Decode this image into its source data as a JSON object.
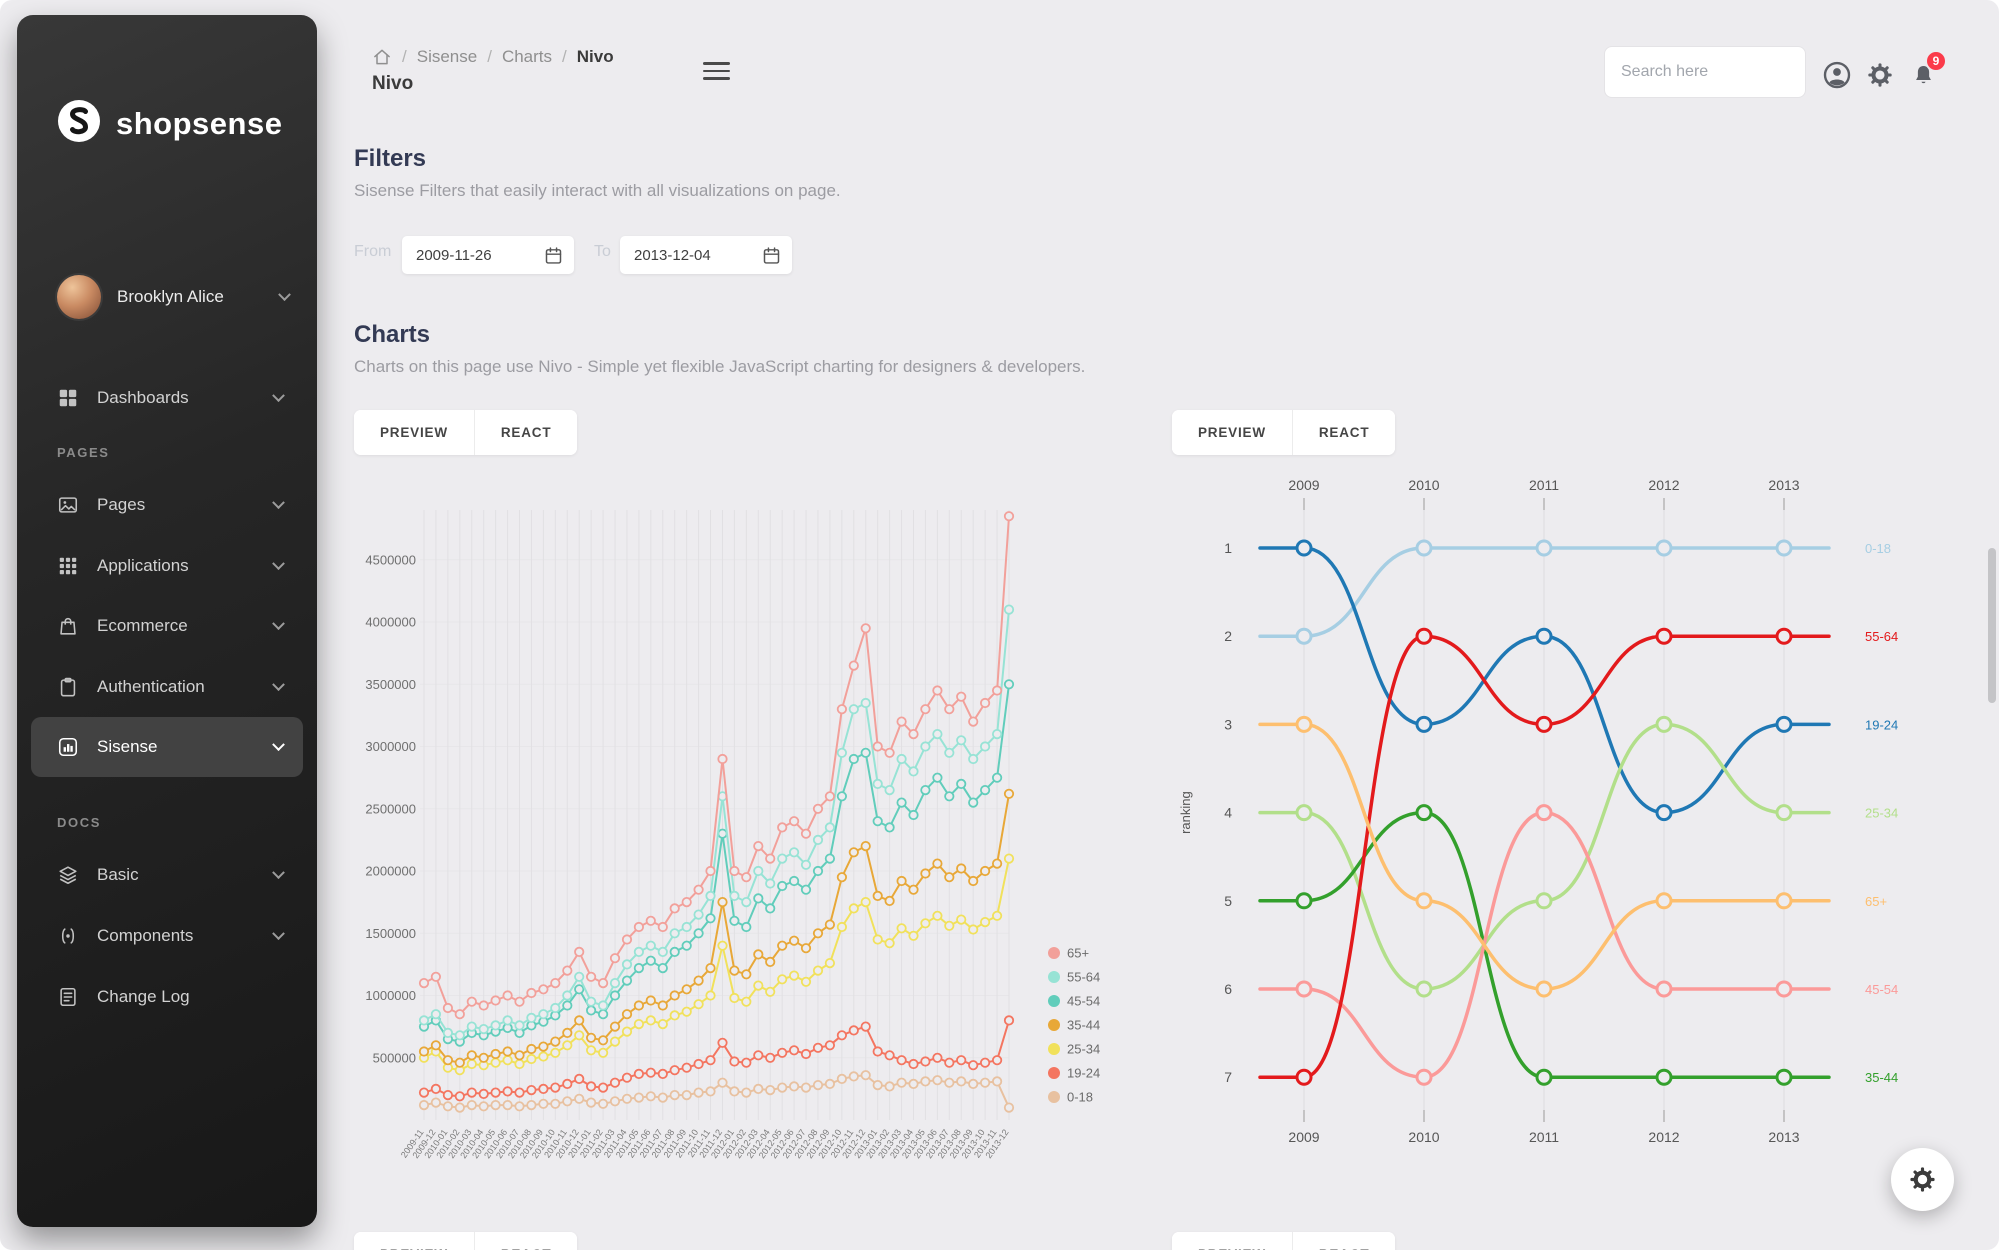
{
  "sidebar": {
    "brand": "shopsense",
    "user": {
      "name": "Brooklyn Alice"
    },
    "sections": {
      "pages": "PAGES",
      "docs": "DOCS"
    },
    "items": [
      {
        "label": "Dashboards"
      },
      {
        "label": "Pages"
      },
      {
        "label": "Applications"
      },
      {
        "label": "Ecommerce"
      },
      {
        "label": "Authentication"
      },
      {
        "label": "Sisense"
      },
      {
        "label": "Basic"
      },
      {
        "label": "Components"
      },
      {
        "label": "Change Log"
      }
    ]
  },
  "header": {
    "breadcrumb": {
      "items": [
        "Sisense",
        "Charts",
        "Nivo"
      ],
      "separator": "/"
    },
    "page_title": "Nivo",
    "search_placeholder": "Search here",
    "badge_count": "9"
  },
  "filters": {
    "title": "Filters",
    "subtitle": "Sisense Filters that easily interact with all visualizations on page.",
    "from_label": "From",
    "from_value": "2009-11-26",
    "to_label": "To",
    "to_value": "2013-12-04"
  },
  "charts_section": {
    "title": "Charts",
    "subtitle": "Charts on this page use Nivo - Simple yet flexible JavaScript charting for designers & developers."
  },
  "tabs": {
    "preview": "PREVIEW",
    "react": "REACT"
  },
  "colors": {
    "badge": "#fb3b4a",
    "page_bg": "#edecef",
    "sidebar_bg": "#222222"
  },
  "chart_data": [
    {
      "type": "line",
      "title": "",
      "xlabel": "",
      "ylabel": "",
      "legend_position": "right",
      "ylim": [
        0,
        4900000
      ],
      "y_ticks": [
        500000,
        1000000,
        1500000,
        2000000,
        2500000,
        3000000,
        3500000,
        4000000,
        4500000
      ],
      "x_tick_rotation": -55,
      "x": [
        "2009-11",
        "2009-12",
        "2010-01",
        "2010-02",
        "2010-03",
        "2010-04",
        "2010-05",
        "2010-06",
        "2010-07",
        "2010-08",
        "2010-09",
        "2010-10",
        "2010-11",
        "2010-12",
        "2011-01",
        "2011-02",
        "2011-03",
        "2011-04",
        "2011-05",
        "2011-06",
        "2011-07",
        "2011-08",
        "2011-09",
        "2011-10",
        "2011-11",
        "2011-12",
        "2012-01",
        "2012-02",
        "2012-03",
        "2012-04",
        "2012-05",
        "2012-06",
        "2012-07",
        "2012-08",
        "2012-09",
        "2012-10",
        "2012-11",
        "2012-12",
        "2013-01",
        "2013-02",
        "2013-03",
        "2013-04",
        "2013-05",
        "2013-06",
        "2013-07",
        "2013-08",
        "2013-09",
        "2013-10",
        "2013-11",
        "2013-12"
      ],
      "series": [
        {
          "name": "65+",
          "color": "#f2a09a",
          "values": [
            1100000,
            1150000,
            900000,
            850000,
            950000,
            920000,
            960000,
            1000000,
            950000,
            1020000,
            1050000,
            1100000,
            1200000,
            1350000,
            1150000,
            1100000,
            1300000,
            1450000,
            1550000,
            1600000,
            1550000,
            1700000,
            1750000,
            1850000,
            2000000,
            2900000,
            2000000,
            1950000,
            2200000,
            2100000,
            2350000,
            2400000,
            2300000,
            2500000,
            2600000,
            3300000,
            3650000,
            3950000,
            3000000,
            2950000,
            3200000,
            3100000,
            3300000,
            3450000,
            3300000,
            3400000,
            3200000,
            3350000,
            3450000,
            4850000
          ]
        },
        {
          "name": "55-64",
          "color": "#97e3d5",
          "values": [
            800000,
            850000,
            700000,
            680000,
            750000,
            730000,
            760000,
            800000,
            760000,
            820000,
            850000,
            900000,
            1000000,
            1150000,
            950000,
            920000,
            1100000,
            1250000,
            1350000,
            1400000,
            1350000,
            1500000,
            1550000,
            1650000,
            1800000,
            2600000,
            1800000,
            1750000,
            2000000,
            1900000,
            2100000,
            2150000,
            2050000,
            2250000,
            2350000,
            2950000,
            3300000,
            3350000,
            2700000,
            2650000,
            2900000,
            2800000,
            3000000,
            3100000,
            2950000,
            3050000,
            2900000,
            3000000,
            3100000,
            4100000
          ]
        },
        {
          "name": "45-54",
          "color": "#61cdbb",
          "values": [
            750000,
            800000,
            650000,
            630000,
            700000,
            680000,
            710000,
            740000,
            700000,
            760000,
            790000,
            840000,
            920000,
            1050000,
            880000,
            850000,
            1000000,
            1120000,
            1220000,
            1280000,
            1220000,
            1350000,
            1400000,
            1500000,
            1620000,
            2300000,
            1600000,
            1550000,
            1780000,
            1700000,
            1880000,
            1920000,
            1850000,
            2000000,
            2100000,
            2600000,
            2900000,
            2950000,
            2400000,
            2350000,
            2550000,
            2450000,
            2650000,
            2750000,
            2600000,
            2700000,
            2550000,
            2650000,
            2750000,
            3500000
          ]
        },
        {
          "name": "35-44",
          "color": "#e8a838",
          "values": [
            550000,
            600000,
            480000,
            460000,
            520000,
            500000,
            530000,
            550000,
            520000,
            570000,
            590000,
            630000,
            700000,
            800000,
            660000,
            640000,
            750000,
            850000,
            920000,
            960000,
            920000,
            1000000,
            1050000,
            1120000,
            1220000,
            1750000,
            1200000,
            1170000,
            1330000,
            1270000,
            1400000,
            1440000,
            1380000,
            1500000,
            1570000,
            1950000,
            2150000,
            2200000,
            1800000,
            1760000,
            1920000,
            1850000,
            1980000,
            2060000,
            1950000,
            2020000,
            1920000,
            2000000,
            2060000,
            2620000
          ]
        },
        {
          "name": "25-34",
          "color": "#f1e15b",
          "values": [
            500000,
            550000,
            420000,
            400000,
            450000,
            440000,
            460000,
            480000,
            450000,
            490000,
            510000,
            540000,
            600000,
            680000,
            560000,
            540000,
            630000,
            710000,
            770000,
            800000,
            770000,
            840000,
            870000,
            930000,
            1000000,
            1400000,
            980000,
            950000,
            1080000,
            1030000,
            1130000,
            1160000,
            1110000,
            1200000,
            1260000,
            1550000,
            1700000,
            1750000,
            1450000,
            1420000,
            1540000,
            1480000,
            1580000,
            1640000,
            1560000,
            1610000,
            1530000,
            1590000,
            1640000,
            2100000
          ]
        },
        {
          "name": "19-24",
          "color": "#f47560",
          "values": [
            220000,
            250000,
            200000,
            190000,
            220000,
            210000,
            220000,
            230000,
            220000,
            240000,
            250000,
            260000,
            290000,
            330000,
            270000,
            260000,
            300000,
            340000,
            370000,
            380000,
            370000,
            400000,
            420000,
            450000,
            480000,
            620000,
            470000,
            460000,
            520000,
            500000,
            540000,
            560000,
            530000,
            580000,
            600000,
            680000,
            720000,
            750000,
            550000,
            520000,
            480000,
            450000,
            470000,
            500000,
            460000,
            480000,
            440000,
            460000,
            480000,
            800000
          ]
        },
        {
          "name": "0-18",
          "color": "#e8c1a0",
          "values": [
            120000,
            140000,
            110000,
            100000,
            120000,
            110000,
            120000,
            120000,
            110000,
            120000,
            130000,
            130000,
            150000,
            170000,
            140000,
            130000,
            150000,
            170000,
            180000,
            190000,
            180000,
            200000,
            200000,
            220000,
            230000,
            300000,
            230000,
            220000,
            250000,
            240000,
            260000,
            270000,
            260000,
            280000,
            290000,
            330000,
            350000,
            360000,
            280000,
            270000,
            300000,
            290000,
            310000,
            320000,
            300000,
            310000,
            290000,
            300000,
            310000,
            100000
          ]
        }
      ]
    },
    {
      "type": "bump",
      "title": "",
      "xlabel": "",
      "ylabel": "ranking",
      "x": [
        2009,
        2010,
        2011,
        2012,
        2013
      ],
      "ranks": [
        1,
        2,
        3,
        4,
        5,
        6,
        7
      ],
      "series": [
        {
          "name": "0-18",
          "color": "#a6cee3",
          "ranks": [
            2,
            1,
            1,
            1,
            1
          ]
        },
        {
          "name": "19-24",
          "color": "#1f78b4",
          "ranks": [
            1,
            3,
            2,
            4,
            3
          ]
        },
        {
          "name": "25-34",
          "color": "#b2df8a",
          "ranks": [
            4,
            6,
            5,
            3,
            4
          ]
        },
        {
          "name": "35-44",
          "color": "#33a02c",
          "ranks": [
            5,
            4,
            7,
            7,
            7
          ]
        },
        {
          "name": "45-54",
          "color": "#fb9a99",
          "ranks": [
            6,
            7,
            4,
            6,
            6
          ]
        },
        {
          "name": "55-64",
          "color": "#e31a1c",
          "ranks": [
            7,
            2,
            3,
            2,
            2
          ]
        },
        {
          "name": "65+",
          "color": "#fdbf6f",
          "ranks": [
            3,
            5,
            6,
            5,
            5
          ]
        }
      ]
    }
  ]
}
